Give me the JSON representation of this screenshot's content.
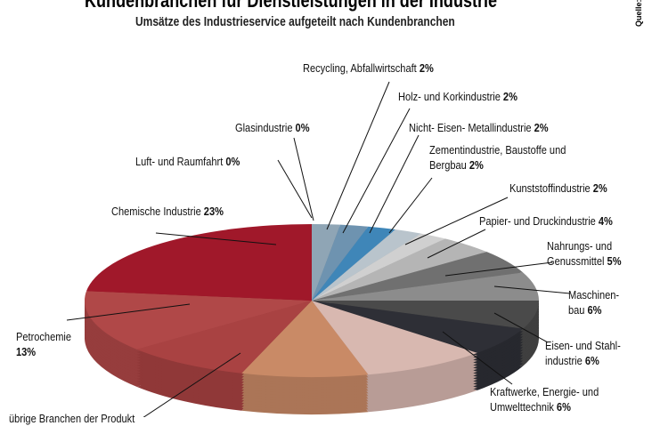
{
  "chart_data": {
    "type": "pie",
    "title": "Kundenbranchen für Dienstleistungen in der Industrie",
    "subtitle": "Umsätze des Industrieservice aufgeteilt nach Kundenbranchen",
    "source": "Quelle:",
    "unit": "%",
    "slices": [
      {
        "label": "Recycling, Abfallwirtschaft",
        "value": 2,
        "color": "#8fa5b5"
      },
      {
        "label": "Holz- und Korkindustrie",
        "value": 2,
        "color": "#6e93b0"
      },
      {
        "label": "Nicht- Eisen- Metallindustrie",
        "value": 2,
        "color": "#3f86b8"
      },
      {
        "label": "Zementindustrie, Baustoffe und Bergbau",
        "value": 2,
        "color": "#b9c4cc"
      },
      {
        "label": "Kunststoffindustrie",
        "value": 2,
        "color": "#d0d0d0"
      },
      {
        "label": "Papier- und Druckindustrie",
        "value": 4,
        "color": "#b5b5b5"
      },
      {
        "label": "Nahrungs- und Genussmittel",
        "value": 5,
        "color": "#707070"
      },
      {
        "label": "Maschinenbau",
        "value": 6,
        "color": "#8c8c8c"
      },
      {
        "label": "Eisen- und Stahlindustrie",
        "value": 6,
        "color": "#4a4a4a"
      },
      {
        "label": "Kraftwerke, Energie- und Umwelttechnik",
        "value": 6,
        "color": "#2e2f36"
      },
      {
        "label": "",
        "value": 9,
        "color": "#d8b8b0"
      },
      {
        "label": "",
        "value": 9,
        "color": "#c98a66"
      },
      {
        "label": "übrige Branchen der Produkt",
        "value": 9,
        "color": "#a94242"
      },
      {
        "label": "Petrochemie",
        "value": 13,
        "color": "#b04848"
      },
      {
        "label": "Chemische Industrie",
        "value": 23,
        "color": "#a0182a"
      },
      {
        "label": "Luft- und Raumfahrt",
        "value": 0,
        "color": "#999999"
      },
      {
        "label": "Glasindustrie",
        "value": 0,
        "color": "#999999"
      }
    ]
  }
}
